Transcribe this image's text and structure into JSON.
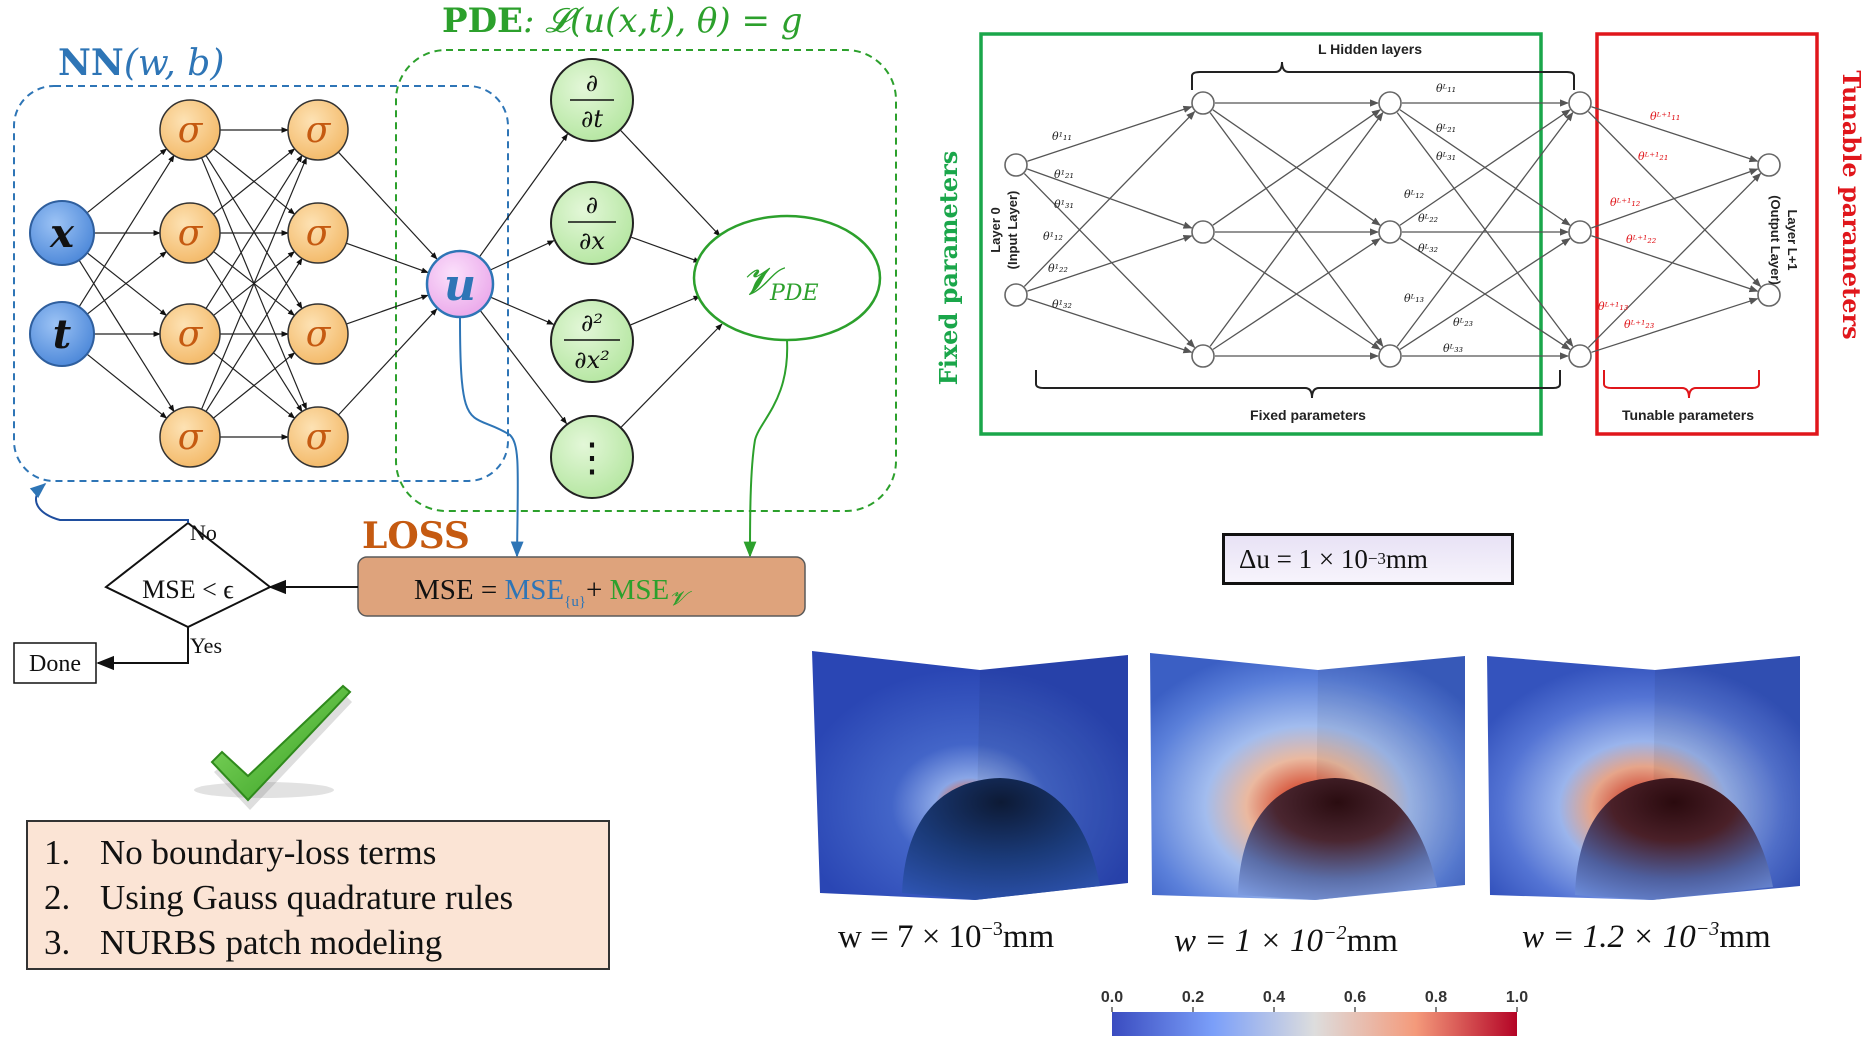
{
  "nn": {
    "title_bold": "NN",
    "title_args": "(w, b)",
    "color": "#2e75b6",
    "inputs": [
      "x",
      "t"
    ],
    "activation": "σ",
    "output": "u"
  },
  "pde": {
    "title_bold": "PDE",
    "title_expr": ": 𝓛(u(x,t), θ) = g",
    "color": "#2ca02c",
    "operators": {
      "dt_num": "∂",
      "dt_den": "∂t",
      "dx_num": "∂",
      "dx_den": "∂x",
      "dxx_num": "∂²",
      "dxx_den": "∂x²",
      "more": "⋮"
    },
    "residual_main": "𝓥",
    "residual_sub": "PDE"
  },
  "loss": {
    "title": "LOSS",
    "title_color": "#c55a11",
    "box_color": "#dea37c",
    "mse_label": "MSE = ",
    "mse_u": "MSE",
    "mse_u_sub": "{u}",
    "plus": "+ ",
    "mse_v": "MSE",
    "mse_v_sub": "𝓥"
  },
  "decision": {
    "condition": "MSE < ϵ",
    "no": "No",
    "yes": "Yes",
    "done": "Done"
  },
  "checklist": [
    {
      "num": "1.",
      "text": "No boundary-loss terms"
    },
    {
      "num": "2.",
      "text": "Using Gauss quadrature rules"
    },
    {
      "num": "3.",
      "text": "NURBS patch modeling"
    }
  ],
  "network_diagram": {
    "hidden_label": "L Hidden layers",
    "input_layer_label": "Layer 0",
    "input_layer_sub": "(Input Layer)",
    "output_layer_label": "Layer L+1",
    "output_layer_sub": "(Output Layer)",
    "fixed_bottom": "Fixed parameters",
    "tunable_bottom": "Tunable parameters",
    "fixed_side": "Fixed parameters",
    "tunable_side": "Tunable parameters",
    "fixed_color": "#1aa64a",
    "tunable_color": "#e0161b",
    "w_input": [
      "θ¹₁₁",
      "θ¹₂₁",
      "θ¹₃₁",
      "θ¹₁₂",
      "θ¹₂₂",
      "θ¹₃₂"
    ],
    "w_hidden": [
      "θᴸ₁₁",
      "θᴸ₂₁",
      "θᴸ₃₁",
      "θᴸ₁₂",
      "θᴸ₂₂",
      "θᴸ₃₂",
      "θᴸ₁₃",
      "θᴸ₂₃",
      "θᴸ₃₃"
    ],
    "w_output": [
      "θᴸ⁺¹₁₁",
      "θᴸ⁺¹₂₁",
      "θᴸ⁺¹₁₂",
      "θᴸ⁺¹₂₂",
      "θᴸ⁺¹₁₃",
      "θᴸ⁺¹₂₃"
    ]
  },
  "displacement": {
    "label": "Δu = 1 × 10",
    "exp": "−3",
    "unit": "mm"
  },
  "results": [
    {
      "prefix": "w = 7 × 10",
      "exp": "−3",
      "unit": "mm"
    },
    {
      "prefix": "w = 1 × 10",
      "exp": "−2",
      "unit": "mm"
    },
    {
      "prefix": "w =  1.2 × 10",
      "exp": "−3",
      "unit": "mm"
    }
  ],
  "colorbar": {
    "ticks": [
      "0.0",
      "0.2",
      "0.4",
      "0.6",
      "0.8",
      "1.0"
    ],
    "colors": [
      "#3a4cc0",
      "#7b9ff9",
      "#dddddd",
      "#f49a7b",
      "#b40426"
    ]
  }
}
